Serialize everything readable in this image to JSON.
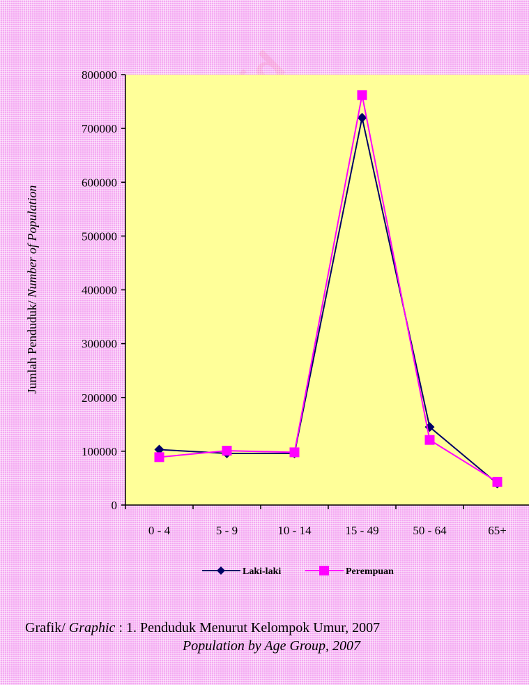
{
  "chart_data": {
    "type": "line",
    "categories": [
      "0 - 4",
      "5 - 9",
      "10 - 14",
      "15 - 49",
      "50 - 64",
      "65+"
    ],
    "series": [
      {
        "name": "Laki-laki",
        "values": [
          103000,
          96000,
          96000,
          720000,
          145000,
          40000
        ],
        "color": "#000066",
        "marker": "diamond"
      },
      {
        "name": "Perempuan",
        "values": [
          89000,
          101000,
          98000,
          762000,
          121000,
          43000
        ],
        "color": "#ff00ff",
        "marker": "square"
      }
    ],
    "ylabel_plain": "Jumlah Penduduk/ ",
    "ylabel_italic": "Number of Population",
    "ylim": [
      0,
      800000
    ],
    "yticks": [
      0,
      100000,
      200000,
      300000,
      400000,
      500000,
      600000,
      700000,
      800000
    ],
    "yticklabels": [
      "0",
      "100000",
      "200000",
      "300000",
      "400000",
      "500000",
      "600000",
      "700000",
      "800000"
    ],
    "grid": false,
    "legend_position": "bottom",
    "plot_background": "#ffff99"
  },
  "caption": {
    "prefix_plain": "Grafik/ ",
    "prefix_italic": "Graphic",
    "separator": " :  1.  ",
    "title": "Penduduk Menurut Kelompok Umur, 2007",
    "subtitle": "Population by Age Group, 2007"
  },
  "watermark": "bps.go.id"
}
